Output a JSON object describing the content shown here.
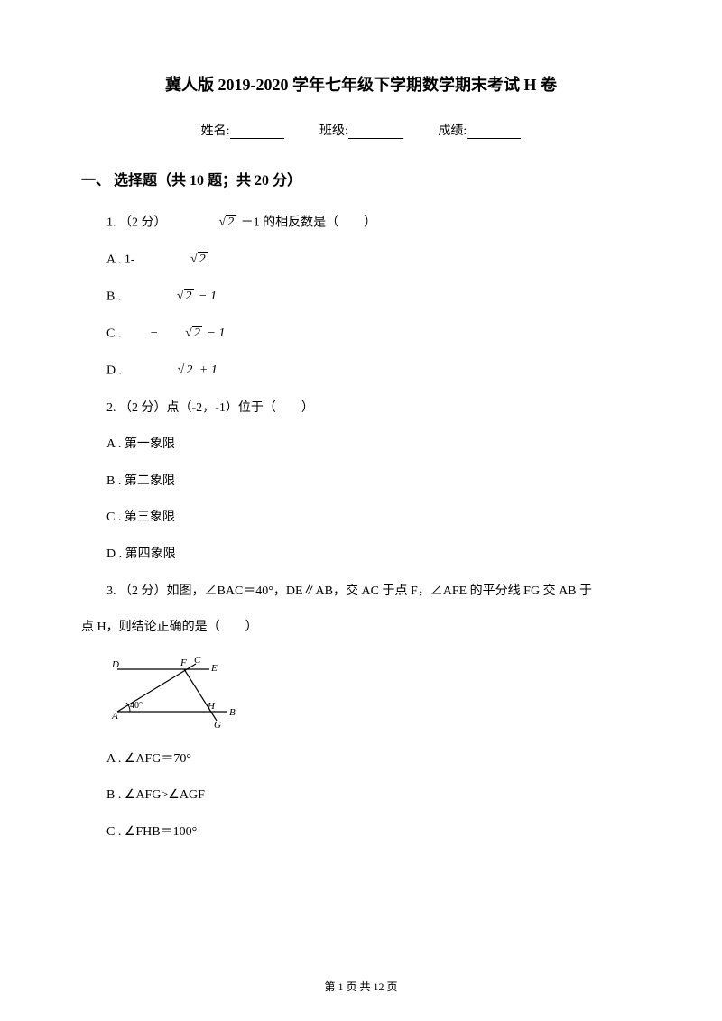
{
  "title": "冀人版 2019-2020 学年七年级下学期数学期末考试 H 卷",
  "header": {
    "name_label": "姓名:",
    "class_label": "班级:",
    "score_label": "成绩:"
  },
  "section": {
    "title": "一、 选择题（共 10 题；共 20 分）"
  },
  "q1": {
    "stem_prefix": "1. （2 分）",
    "stem_suffix": " －1 的相反数是（　　）",
    "A_prefix": "A . 1-",
    "B_prefix": "B . ",
    "C_prefix": "C . ",
    "D_prefix": "D . "
  },
  "q2": {
    "stem": "2. （2 分）点（-2，-1）位于（　　）",
    "A": "A . 第一象限",
    "B": "B . 第二象限",
    "C": "C . 第三象限",
    "D": "D . 第四象限"
  },
  "q3": {
    "stem": "3. （2 分）如图，∠BAC＝40°，DE∥AB，交 AC 于点 F，∠AFE 的平分线  FG 交 AB 于",
    "stem2": "点 H，则结论正确的是（　　）",
    "A": "A . ∠AFG＝70°",
    "B": "B . ∠AFG>∠AGF",
    "C": "C . ∠FHB＝100°"
  },
  "figure": {
    "D": "D",
    "F": "F",
    "C": "C",
    "E": "E",
    "A": "A",
    "H": "H",
    "B": "B",
    "G": "G",
    "angle": "40°",
    "stroke": "#000000",
    "width": 150,
    "height": 86
  },
  "footer": {
    "text": "第 1 页 共 12 页"
  }
}
